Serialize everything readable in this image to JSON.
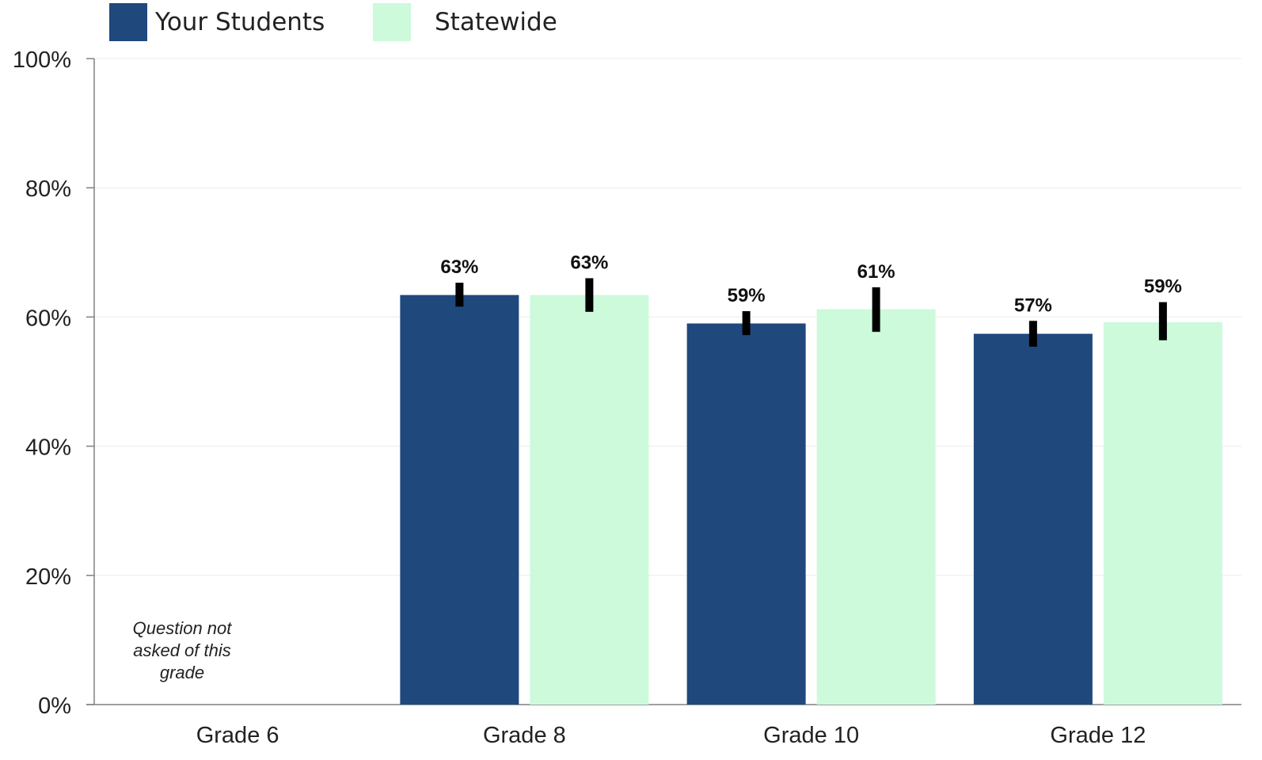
{
  "chart_data": {
    "type": "bar",
    "categories": [
      "Grade 6",
      "Grade 8",
      "Grade 10",
      "Grade 12"
    ],
    "series": [
      {
        "name": "Your Students",
        "color": "#1f497d",
        "values": [
          null,
          63.4,
          59.0,
          57.4
        ],
        "labels": [
          "",
          "63%",
          "59%",
          "57%"
        ],
        "error_low": [
          null,
          61.6,
          57.2,
          55.4
        ],
        "error_high": [
          null,
          65.3,
          60.9,
          59.4
        ]
      },
      {
        "name": "Statewide",
        "color": "#ccfadb",
        "values": [
          null,
          63.4,
          61.2,
          59.2
        ],
        "labels": [
          "",
          "63%",
          "61%",
          "59%"
        ],
        "error_low": [
          null,
          60.8,
          57.7,
          56.4
        ],
        "error_high": [
          null,
          66.0,
          64.6,
          62.3
        ]
      }
    ],
    "ylim": [
      0,
      100
    ],
    "yticks": [
      0,
      20,
      40,
      60,
      80,
      100
    ],
    "ytick_labels": [
      "0%",
      "20%",
      "40%",
      "60%",
      "80%",
      "100%"
    ],
    "grid": true,
    "legend": "top-left",
    "annotations": [
      {
        "category": "Grade 6",
        "text": "Question not asked of this grade"
      }
    ]
  },
  "note_text": "Question not asked of this grade"
}
